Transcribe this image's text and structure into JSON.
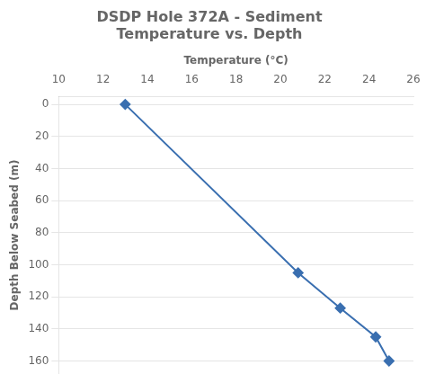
{
  "chart_data": {
    "type": "line",
    "title": "DSDP Hole 372A - Sediment\nTemperature vs. Depth",
    "xlabel": "Temperature (°C)",
    "ylabel": "Depth Below Seabed (m)",
    "x": [
      13.0,
      20.8,
      22.7,
      24.3,
      24.9
    ],
    "values": [
      0,
      105,
      127,
      145,
      160
    ],
    "xlim": [
      10,
      26
    ],
    "ylim": [
      168,
      -5
    ],
    "xticks": [
      10,
      12,
      14,
      16,
      18,
      20,
      22,
      24,
      26
    ],
    "yticks": [
      0,
      20,
      40,
      60,
      80,
      100,
      120,
      140,
      160
    ],
    "color": "#3a6fb0",
    "marker": "diamond",
    "grid": true
  }
}
